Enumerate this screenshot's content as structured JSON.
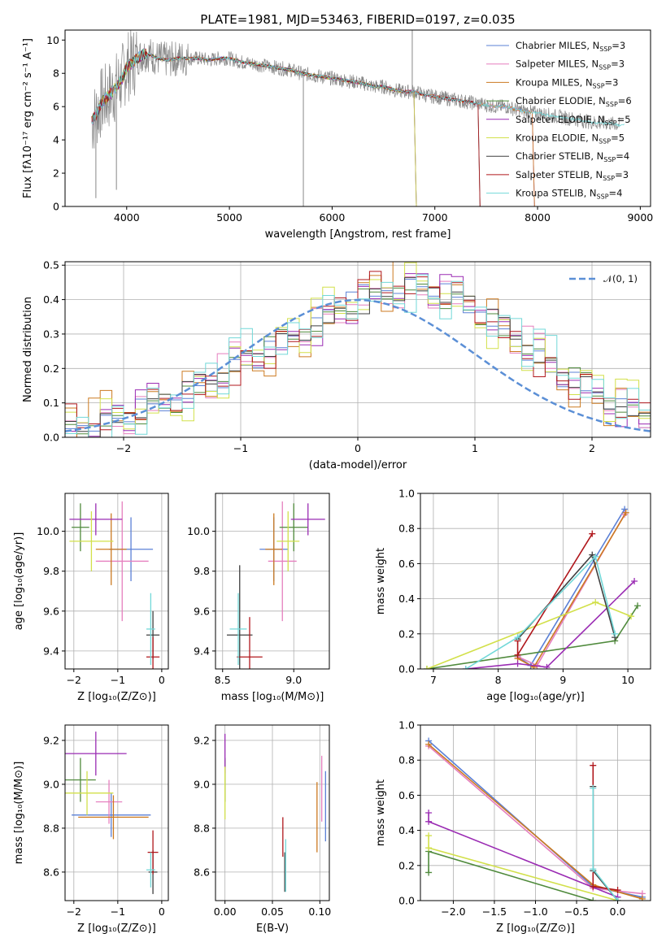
{
  "title": "PLATE=1981, MJD=53463, FIBERID=0197, z=0.035",
  "palette": [
    "#5b80d6",
    "#e57fbe",
    "#cc7a20",
    "#4f8a3c",
    "#9a2bb3",
    "#d2e04a",
    "#3f3f3f",
    "#b0171c",
    "#72d8d8"
  ],
  "chart_data": [
    {
      "type": "line",
      "id": "spectrum",
      "xlabel": "wavelength [Angstrom, rest frame]",
      "ylabel": "Flux [fλ10⁻¹⁷ erg cm⁻² s⁻¹ A⁻¹]",
      "xlim": [
        3400,
        9100
      ],
      "ylim": [
        0,
        10.6
      ],
      "xticks": [
        4000,
        5000,
        6000,
        7000,
        8000,
        9000
      ],
      "yticks": [
        0,
        2,
        4,
        6,
        8,
        10
      ],
      "grid": false,
      "legend_placement": "top-right",
      "data_curve": {
        "x": [
          3660,
          3700,
          3750,
          3800,
          3850,
          3900,
          3950,
          4000,
          4050,
          4100,
          4150,
          4200,
          4300,
          4400,
          4500,
          4600,
          4700,
          4800,
          4900,
          5000,
          5100,
          5200,
          5300,
          5400,
          5500,
          5600,
          5700,
          5800,
          5900,
          6000,
          6100,
          6200,
          6300,
          6400,
          6500,
          6600,
          6700,
          6800,
          6900,
          7000,
          7100,
          7200,
          7300,
          7400,
          7500,
          7600,
          7700,
          7800,
          7900,
          8000,
          8100,
          8200,
          8300,
          8400,
          8500,
          8600,
          8700,
          8800
        ],
        "y": [
          5.1,
          5.5,
          6.2,
          6.5,
          6.8,
          7.2,
          7.6,
          8.4,
          8.6,
          8.9,
          9.1,
          9.2,
          8.9,
          8.8,
          8.9,
          8.9,
          8.9,
          8.8,
          8.9,
          8.9,
          8.7,
          8.6,
          8.5,
          8.4,
          8.3,
          8.2,
          8.0,
          7.9,
          7.8,
          7.7,
          7.6,
          7.5,
          7.4,
          7.2,
          7.2,
          7.0,
          6.9,
          6.9,
          6.7,
          6.6,
          6.5,
          6.4,
          6.3,
          6.2,
          6.1,
          6.0,
          6.0,
          5.8,
          5.7,
          5.6,
          5.5,
          5.4,
          5.3,
          5.2,
          5.1,
          5.0,
          5.0,
          4.9
        ]
      },
      "series": [
        {
          "name": "Chabrier MILES, N_SSP=3",
          "label_main": "Chabrier MILES, N",
          "label_sub": "SSP",
          "label_end": "=3",
          "x_end": 7950
        },
        {
          "name": "Salpeter MILES, N_SSP=3",
          "label_main": "Salpeter MILES, N",
          "label_sub": "SSP",
          "label_end": "=3",
          "x_end": 7950
        },
        {
          "name": "Kroupa MILES, N_SSP=3",
          "label_main": "Kroupa MILES, N",
          "label_sub": "SSP",
          "label_end": "=3",
          "x_end": 7950
        },
        {
          "name": "Chabrier ELODIE, N_SSP=6",
          "label_main": "Chabrier ELODIE, N",
          "label_sub": "SSP",
          "label_end": "=6",
          "x_end": 6800
        },
        {
          "name": "Salpeter ELODIE, N_SSP=5",
          "label_main": "Salpeter ELODIE, N",
          "label_sub": "SSP",
          "label_end": "=5",
          "x_end": 6800
        },
        {
          "name": "Kroupa ELODIE, N_SSP=5",
          "label_main": "Kroupa ELODIE, N",
          "label_sub": "SSP",
          "label_end": "=5",
          "x_end": 6800
        },
        {
          "name": "Chabrier STELIB, N_SSP=4",
          "label_main": "Chabrier STELIB, N",
          "label_sub": "SSP",
          "label_end": "=4",
          "x_end": 7420
        },
        {
          "name": "Salpeter STELIB, N_SSP=3",
          "label_main": "Salpeter STELIB, N",
          "label_sub": "SSP",
          "label_end": "=3",
          "x_end": 7420
        },
        {
          "name": "Kroupa STELIB, N_SSP=4",
          "label_main": "Kroupa STELIB, N",
          "label_sub": "SSP",
          "label_end": "=4",
          "x_end": 8850
        }
      ]
    },
    {
      "type": "bar",
      "id": "residuals",
      "xlabel": "(data-model)/error",
      "ylabel": "Normed distribution",
      "xlim": [
        -2.5,
        2.5
      ],
      "ylim": [
        0,
        0.51
      ],
      "xticks": [
        -2,
        -1,
        0,
        1,
        2
      ],
      "xtick_labels": [
        "−2",
        "−1",
        "0",
        "1",
        "2"
      ],
      "yticks": [
        0.0,
        0.1,
        0.2,
        0.3,
        0.4,
        0.5
      ],
      "ytick_labels": [
        "0.0",
        "0.1",
        "0.2",
        "0.3",
        "0.4",
        "0.5"
      ],
      "grid": true,
      "legend_placement": "top-right",
      "legend_label": "𝒩(0, 1)",
      "bin_width": 0.1,
      "bins_start": -2.5,
      "values": [
        0.025,
        0.028,
        0.03,
        0.04,
        0.048,
        0.06,
        0.075,
        0.085,
        0.095,
        0.105,
        0.12,
        0.135,
        0.155,
        0.18,
        0.205,
        0.22,
        0.235,
        0.25,
        0.265,
        0.285,
        0.3,
        0.32,
        0.34,
        0.36,
        0.38,
        0.395,
        0.41,
        0.42,
        0.43,
        0.435,
        0.43,
        0.425,
        0.41,
        0.395,
        0.38,
        0.36,
        0.33,
        0.3,
        0.285,
        0.26,
        0.23,
        0.2,
        0.18,
        0.16,
        0.14,
        0.12,
        0.1,
        0.085,
        0.07,
        0.055
      ],
      "jitter": [
        0.0,
        0.006,
        -0.008,
        0.01,
        -0.012,
        0.015,
        -0.02,
        0.025,
        -0.03,
        0.04,
        -0.035,
        0.045,
        0.012,
        -0.06,
        0.05,
        -0.025,
        0.035,
        -0.045,
        0.06,
        -0.018,
        0.07,
        0.02,
        -0.055,
        0.08,
        -0.03,
        0.048
      ],
      "normal_curve": true
    },
    {
      "type": "scatter",
      "id": "age-vs-metallicity",
      "xlabel": "Z [log₁₀(Z/Z⊙)]",
      "ylabel": "age  [log₁₀(age/yr)]",
      "xlim": [
        -2.2,
        0.15
      ],
      "ylim": [
        9.31,
        10.19
      ],
      "xticks": [
        -2,
        -1,
        0
      ],
      "xtick_labels": [
        "−2",
        "−1",
        "0"
      ],
      "yticks": [
        9.4,
        9.6,
        9.8,
        10.0
      ],
      "ytick_labels": [
        "9.4",
        "9.6",
        "9.8",
        "10.0"
      ],
      "grid": true,
      "points": [
        {
          "c": 0,
          "x": -0.7,
          "y": 9.91,
          "xe": 0.5,
          "ye": 0.16
        },
        {
          "c": 1,
          "x": -0.9,
          "y": 9.85,
          "xe": 0.6,
          "ye": 0.3
        },
        {
          "c": 2,
          "x": -1.15,
          "y": 9.91,
          "xe": 0.35,
          "ye": 0.18
        },
        {
          "c": 3,
          "x": -1.85,
          "y": 10.02,
          "xe": 0.2,
          "ye": 0.12
        },
        {
          "c": 4,
          "x": -1.5,
          "y": 10.06,
          "xe": 0.6,
          "ye": 0.08
        },
        {
          "c": 5,
          "x": -1.6,
          "y": 9.95,
          "xe": 0.5,
          "ye": 0.15
        },
        {
          "c": 6,
          "x": -0.2,
          "y": 9.48,
          "xe": 0.15,
          "ye": 0.12
        },
        {
          "c": 7,
          "x": -0.2,
          "y": 9.37,
          "xe": 0.15,
          "ye": 0.1
        },
        {
          "c": 8,
          "x": -0.25,
          "y": 9.51,
          "xe": 0.1,
          "ye": 0.18
        }
      ]
    },
    {
      "type": "scatter",
      "id": "age-vs-mass",
      "xlabel": "mass [log₁₀(M/M⊙)]",
      "ylabel": "",
      "xlim": [
        8.45,
        9.25
      ],
      "ylim": [
        9.31,
        10.19
      ],
      "xticks": [
        8.5,
        9.0
      ],
      "xtick_labels": [
        "8.5",
        "9.0"
      ],
      "yticks": [
        9.4,
        9.6,
        9.8,
        10.0
      ],
      "ytick_labels": [
        "9.4",
        "9.6",
        "9.8",
        "10.0"
      ],
      "grid": true,
      "points": [
        {
          "c": 0,
          "x": 8.86,
          "y": 9.91,
          "xe": 0.1,
          "ye": 0.16
        },
        {
          "c": 1,
          "x": 8.92,
          "y": 9.85,
          "xe": 0.1,
          "ye": 0.3
        },
        {
          "c": 2,
          "x": 8.86,
          "y": 9.91,
          "xe": 0.06,
          "ye": 0.18
        },
        {
          "c": 3,
          "x": 9.0,
          "y": 10.02,
          "xe": 0.1,
          "ye": 0.12
        },
        {
          "c": 4,
          "x": 9.1,
          "y": 10.06,
          "xe": 0.12,
          "ye": 0.08
        },
        {
          "c": 5,
          "x": 8.96,
          "y": 9.95,
          "xe": 0.08,
          "ye": 0.15
        },
        {
          "c": 6,
          "x": 8.62,
          "y": 9.48,
          "xe": 0.09,
          "ye": 0.35
        },
        {
          "c": 7,
          "x": 8.69,
          "y": 9.37,
          "xe": 0.09,
          "ye": 0.2
        },
        {
          "c": 8,
          "x": 8.61,
          "y": 9.51,
          "xe": 0.06,
          "ye": 0.18
        }
      ]
    },
    {
      "type": "line",
      "id": "mass-weight-vs-age",
      "xlabel": "age  [log₁₀(age/yr)]",
      "ylabel": "mass weight",
      "xlim": [
        6.8,
        10.35
      ],
      "ylim": [
        0,
        1.0
      ],
      "xticks": [
        7,
        8,
        9,
        10
      ],
      "xtick_labels": [
        "7",
        "8",
        "9",
        "10"
      ],
      "yticks": [
        0.0,
        0.2,
        0.4,
        0.6,
        0.8,
        1.0
      ],
      "ytick_labels": [
        "0.0",
        "0.2",
        "0.4",
        "0.6",
        "0.8",
        "1.0"
      ],
      "grid": true,
      "series": [
        {
          "c": 0,
          "x": [
            8.3,
            8.5,
            9.95
          ],
          "y": [
            0.07,
            0.02,
            0.91
          ]
        },
        {
          "c": 1,
          "x": [
            8.3,
            8.6,
            9.95
          ],
          "y": [
            0.07,
            0.02,
            0.88
          ]
        },
        {
          "c": 2,
          "x": [
            8.3,
            8.55,
            9.97
          ],
          "y": [
            0.06,
            0.01,
            0.89
          ]
        },
        {
          "c": 3,
          "x": [
            6.9,
            9.8,
            10.15
          ],
          "y": [
            0.0,
            0.16,
            0.36
          ]
        },
        {
          "c": 4,
          "x": [
            7.5,
            8.3,
            8.75,
            10.1
          ],
          "y": [
            0.0,
            0.03,
            0.01,
            0.5
          ]
        },
        {
          "c": 5,
          "x": [
            6.9,
            9.5,
            10.05
          ],
          "y": [
            0.0,
            0.38,
            0.3
          ]
        },
        {
          "c": 6,
          "x": [
            8.3,
            9.45,
            9.8
          ],
          "y": [
            0.17,
            0.65,
            0.18
          ]
        },
        {
          "c": 7,
          "x": [
            8.3,
            8.3,
            9.45
          ],
          "y": [
            0.16,
            0.08,
            0.77
          ]
        },
        {
          "c": 8,
          "x": [
            7.5,
            8.3,
            9.5,
            9.8
          ],
          "y": [
            0.0,
            0.18,
            0.64,
            0.2
          ]
        }
      ]
    },
    {
      "type": "scatter",
      "id": "mass-vs-metallicity",
      "xlabel": "Z [log₁₀(Z/Z⊙)]",
      "ylabel": "mass [log₁₀(M/M⊙)]",
      "xlim": [
        -2.2,
        0.15
      ],
      "ylim": [
        8.47,
        9.27
      ],
      "xticks": [
        -2,
        -1,
        0
      ],
      "xtick_labels": [
        "−2",
        "−1",
        "0"
      ],
      "yticks": [
        8.6,
        8.8,
        9.0,
        9.2
      ],
      "ytick_labels": [
        "8.6",
        "8.8",
        "9.0",
        "9.2"
      ],
      "grid": true,
      "points": [
        {
          "c": 0,
          "x": -1.15,
          "y": 8.86,
          "xe": 0.9,
          "ye": 0.1
        },
        {
          "c": 1,
          "x": -1.2,
          "y": 8.92,
          "xe": 0.3,
          "ye": 0.1
        },
        {
          "c": 2,
          "x": -1.1,
          "y": 8.85,
          "xe": 0.8,
          "ye": 0.1
        },
        {
          "c": 3,
          "x": -1.85,
          "y": 9.02,
          "xe": 0.35,
          "ye": 0.1
        },
        {
          "c": 4,
          "x": -1.5,
          "y": 9.14,
          "xe": 0.7,
          "ye": 0.1
        },
        {
          "c": 5,
          "x": -1.7,
          "y": 8.96,
          "xe": 0.6,
          "ye": 0.1
        },
        {
          "c": 6,
          "x": -0.2,
          "y": 8.6,
          "xe": 0.1,
          "ye": 0.1
        },
        {
          "c": 7,
          "x": -0.2,
          "y": 8.69,
          "xe": 0.12,
          "ye": 0.1
        },
        {
          "c": 8,
          "x": -0.25,
          "y": 8.61,
          "xe": 0.1,
          "ye": 0.08
        }
      ]
    },
    {
      "type": "scatter",
      "id": "mass-vs-extinction",
      "xlabel": "E(B-V)",
      "ylabel": "",
      "xlim": [
        -0.01,
        0.11
      ],
      "ylim": [
        8.47,
        9.27
      ],
      "xticks": [
        0.0,
        0.05,
        0.1
      ],
      "xtick_labels": [
        "0.00",
        "0.05",
        "0.10"
      ],
      "yticks": [
        8.6,
        8.8,
        9.0,
        9.2
      ],
      "ytick_labels": [
        "8.6",
        "8.8",
        "9.0",
        "9.2"
      ],
      "grid": true,
      "points": [
        {
          "c": 0,
          "x": 0.106,
          "y": 8.9,
          "xe": 0.0,
          "ye": 0.16
        },
        {
          "c": 1,
          "x": 0.102,
          "y": 8.98,
          "xe": 0.0,
          "ye": 0.15
        },
        {
          "c": 2,
          "x": 0.097,
          "y": 8.85,
          "xe": 0.0,
          "ye": 0.16
        },
        {
          "c": 3,
          "x": 0.0,
          "y": 9.02,
          "xe": 0.0,
          "ye": 0.1
        },
        {
          "c": 4,
          "x": 0.0,
          "y": 9.14,
          "xe": 0.0,
          "ye": 0.09
        },
        {
          "c": 5,
          "x": 0.0,
          "y": 8.96,
          "xe": 0.0,
          "ye": 0.12
        },
        {
          "c": 6,
          "x": 0.063,
          "y": 8.6,
          "xe": 0.0,
          "ye": 0.09
        },
        {
          "c": 7,
          "x": 0.061,
          "y": 8.76,
          "xe": 0.0,
          "ye": 0.09
        },
        {
          "c": 8,
          "x": 0.064,
          "y": 8.63,
          "xe": 0.0,
          "ye": 0.12
        }
      ]
    },
    {
      "type": "line",
      "id": "mass-weight-vs-metallicity",
      "xlabel": "Z [log₁₀(Z/Z⊙)]",
      "ylabel": "mass weight",
      "xlim": [
        -2.4,
        0.4
      ],
      "ylim": [
        0,
        1.0
      ],
      "xticks": [
        -2.0,
        -1.5,
        -1.0,
        -0.5,
        0.0
      ],
      "xtick_labels": [
        "−2.0",
        "−1.5",
        "−1.0",
        "−0.5",
        "0.0"
      ],
      "yticks": [
        0.0,
        0.2,
        0.4,
        0.6,
        0.8,
        1.0
      ],
      "ytick_labels": [
        "0.0",
        "0.2",
        "0.4",
        "0.6",
        "0.8",
        "1.0"
      ],
      "grid": true,
      "series": [
        {
          "c": 0,
          "x": [
            -2.3,
            -0.3,
            0.3
          ],
          "y": [
            0.91,
            0.08,
            0.02
          ]
        },
        {
          "c": 1,
          "x": [
            -2.3,
            -0.3,
            0.3
          ],
          "y": [
            0.88,
            0.07,
            0.04
          ]
        },
        {
          "c": 2,
          "x": [
            -2.3,
            -0.3,
            0.3
          ],
          "y": [
            0.89,
            0.09,
            0.01
          ]
        },
        {
          "c": 3,
          "x": [
            -2.3,
            -2.3,
            -0.3
          ],
          "y": [
            0.16,
            0.28,
            0.0
          ]
        },
        {
          "c": 4,
          "x": [
            -2.3,
            -2.3,
            0.0
          ],
          "y": [
            0.5,
            0.45,
            0.02
          ]
        },
        {
          "c": 5,
          "x": [
            -2.3,
            -2.3,
            0.0
          ],
          "y": [
            0.37,
            0.3,
            0.0
          ]
        },
        {
          "c": 6,
          "x": [
            -0.3,
            -0.3,
            0.0
          ],
          "y": [
            0.65,
            0.17,
            0.0
          ]
        },
        {
          "c": 7,
          "x": [
            -0.3,
            -0.3,
            0.0
          ],
          "y": [
            0.77,
            0.08,
            0.06
          ]
        },
        {
          "c": 8,
          "x": [
            -0.3,
            -0.3,
            0.0
          ],
          "y": [
            0.64,
            0.18,
            0.0
          ]
        }
      ]
    }
  ]
}
